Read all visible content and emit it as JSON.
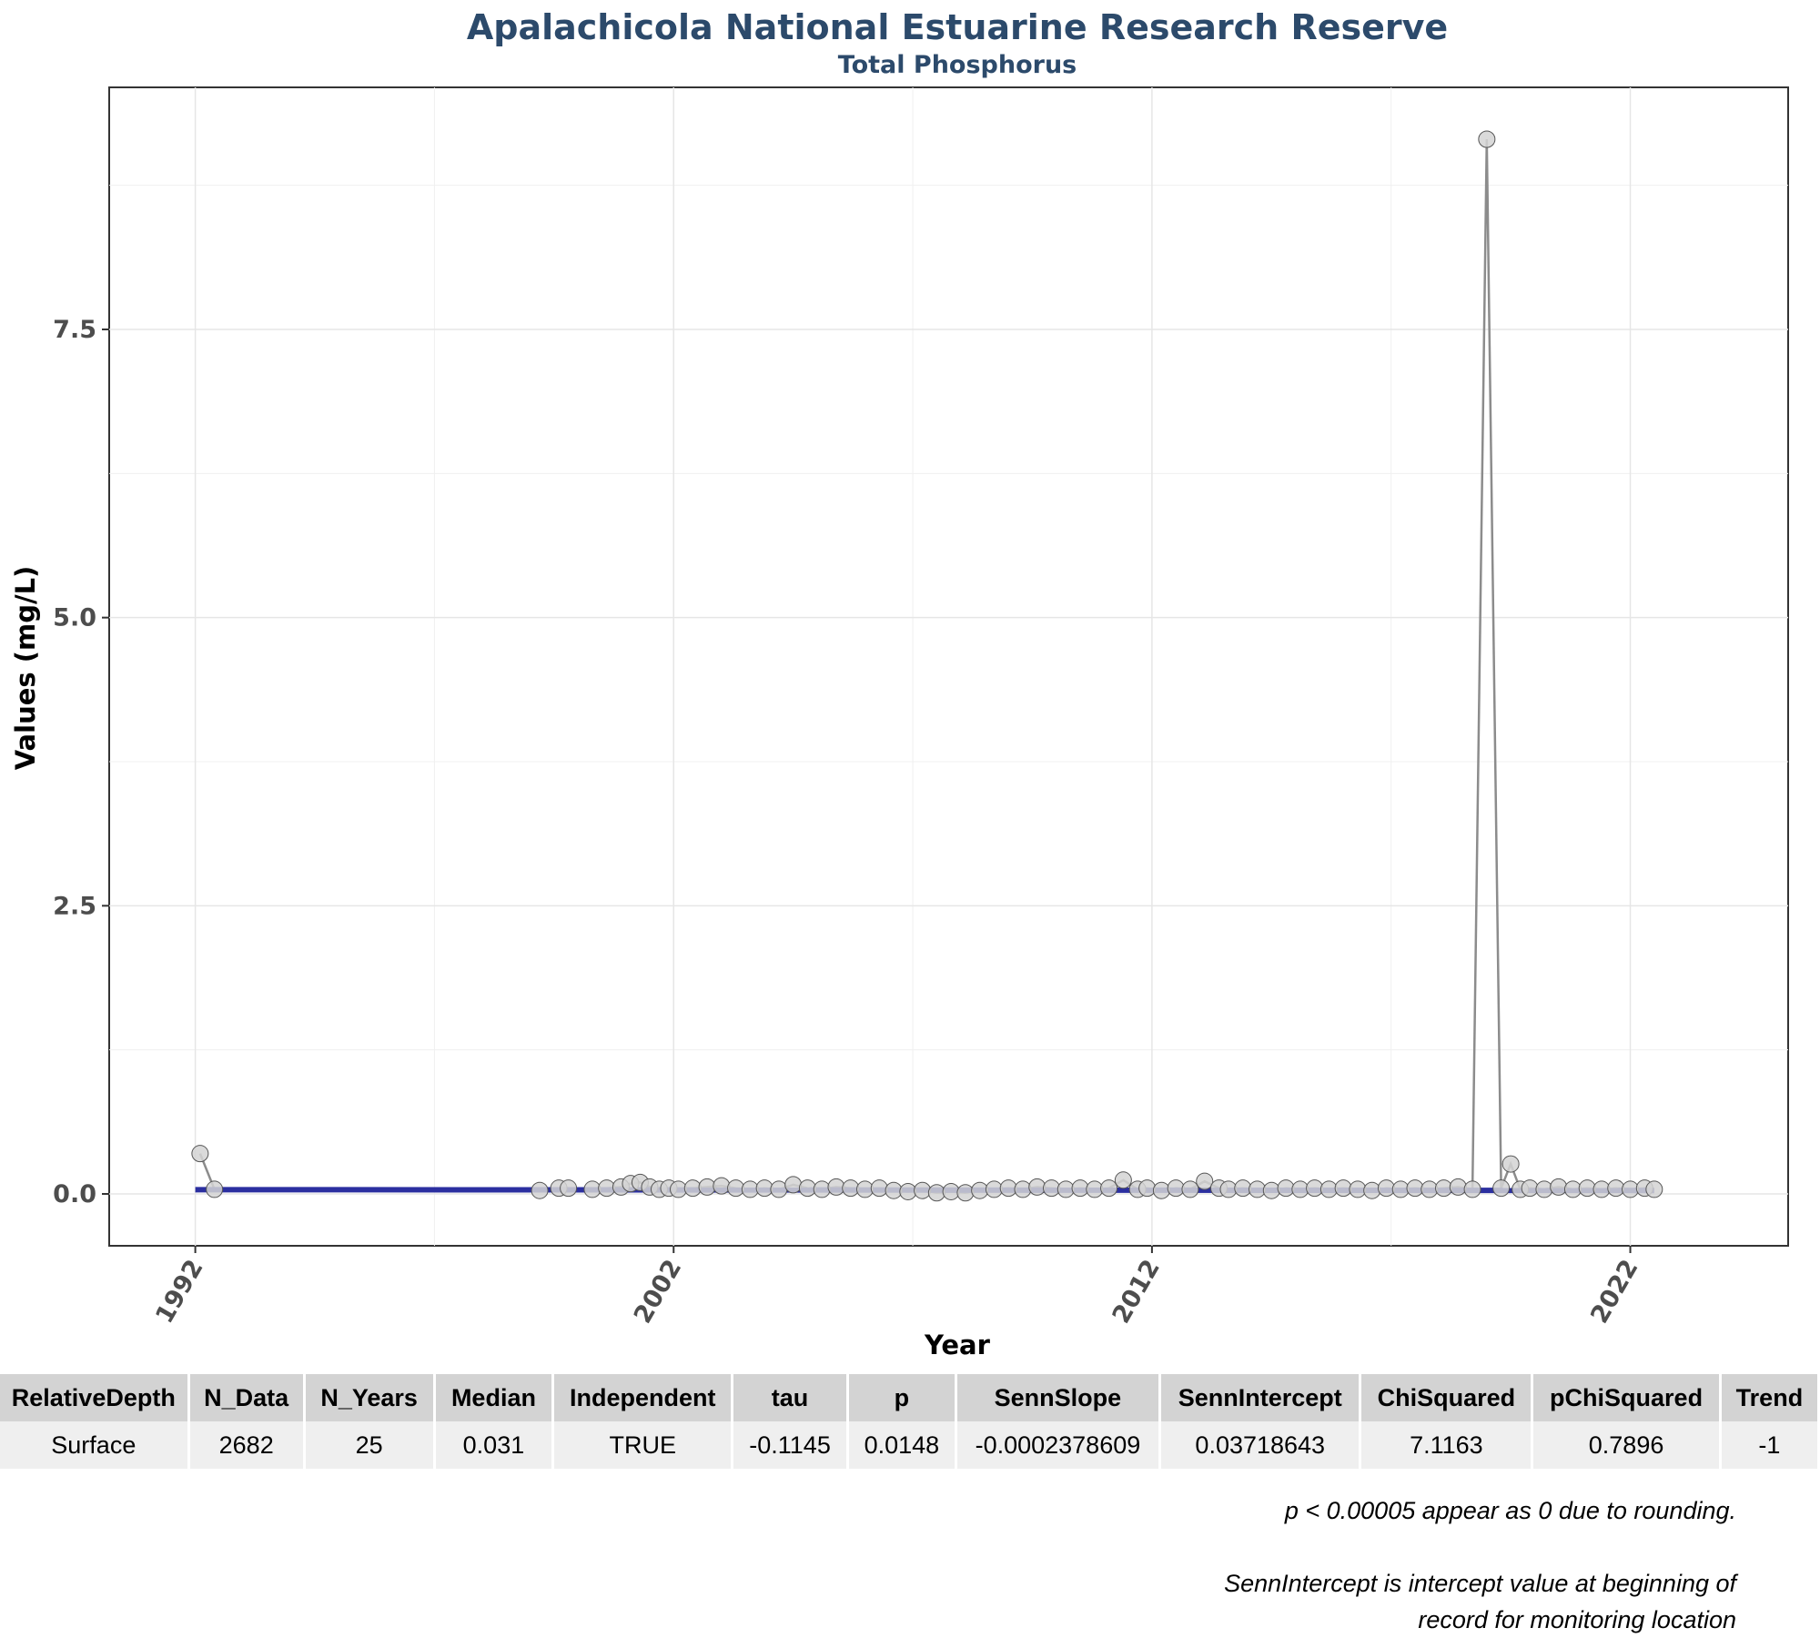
{
  "chart_data": {
    "type": "line",
    "title": "Apalachicola National Estuarine Research Reserve",
    "subtitle": "Total Phosphorus",
    "xlabel": "Year",
    "ylabel": "Values (mg/L)",
    "xlim": [
      1990.2,
      2025.3
    ],
    "ylim": [
      -0.45,
      9.6
    ],
    "x_ticks": [
      1992,
      2002,
      2012,
      2022
    ],
    "y_ticks": [
      0.0,
      2.5,
      5.0,
      7.5
    ],
    "y_tick_labels": [
      "0.0",
      "2.5",
      "5.0",
      "7.5"
    ],
    "grid": true,
    "series": [
      {
        "name": "Observations",
        "x": [
          1992.1,
          1992.4,
          1999.2,
          1999.6,
          1999.8,
          2000.3,
          2000.6,
          2000.9,
          2001.1,
          2001.3,
          2001.5,
          2001.7,
          2001.9,
          2002.1,
          2002.4,
          2002.7,
          2003.0,
          2003.3,
          2003.6,
          2003.9,
          2004.2,
          2004.5,
          2004.8,
          2005.1,
          2005.4,
          2005.7,
          2006.0,
          2006.3,
          2006.6,
          2006.9,
          2007.2,
          2007.5,
          2007.8,
          2008.1,
          2008.4,
          2008.7,
          2009.0,
          2009.3,
          2009.6,
          2009.9,
          2010.2,
          2010.5,
          2010.8,
          2011.1,
          2011.4,
          2011.7,
          2011.9,
          2012.2,
          2012.5,
          2012.8,
          2013.1,
          2013.4,
          2013.6,
          2013.9,
          2014.2,
          2014.5,
          2014.8,
          2015.1,
          2015.4,
          2015.7,
          2016.0,
          2016.3,
          2016.6,
          2016.9,
          2017.2,
          2017.5,
          2017.8,
          2018.1,
          2018.4,
          2018.7,
          2019.0,
          2019.3,
          2019.5,
          2019.7,
          2019.9,
          2020.2,
          2020.5,
          2020.8,
          2021.1,
          2021.4,
          2021.7,
          2022.0,
          2022.3,
          2022.5
        ],
        "y": [
          0.35,
          0.04,
          0.03,
          0.05,
          0.05,
          0.04,
          0.05,
          0.06,
          0.09,
          0.1,
          0.06,
          0.04,
          0.05,
          0.04,
          0.05,
          0.06,
          0.07,
          0.05,
          0.04,
          0.05,
          0.04,
          0.08,
          0.05,
          0.04,
          0.06,
          0.05,
          0.04,
          0.05,
          0.03,
          0.02,
          0.03,
          0.01,
          0.02,
          0.01,
          0.03,
          0.04,
          0.05,
          0.04,
          0.06,
          0.05,
          0.04,
          0.05,
          0.04,
          0.05,
          0.12,
          0.04,
          0.05,
          0.03,
          0.05,
          0.04,
          0.11,
          0.05,
          0.04,
          0.05,
          0.04,
          0.03,
          0.05,
          0.04,
          0.05,
          0.04,
          0.05,
          0.04,
          0.03,
          0.05,
          0.04,
          0.05,
          0.04,
          0.05,
          0.06,
          0.04,
          9.15,
          0.05,
          0.26,
          0.04,
          0.05,
          0.04,
          0.06,
          0.04,
          0.05,
          0.04,
          0.05,
          0.04,
          0.05,
          0.04
        ]
      },
      {
        "name": "Trend",
        "x": [
          1992.0,
          2022.5
        ],
        "y": [
          0.037,
          0.03
        ]
      }
    ],
    "colors": {
      "points": "#d3d3d3",
      "point_edge": "#555555",
      "line": "#8c8c8c",
      "trend": "#2b2fa0",
      "title": "#2c4a6b"
    }
  },
  "table": {
    "headers": [
      "RelativeDepth",
      "N_Data",
      "N_Years",
      "Median",
      "Independent",
      "tau",
      "p",
      "SennSlope",
      "SennIntercept",
      "ChiSquared",
      "pChiSquared",
      "Trend"
    ],
    "row": [
      "Surface",
      "2682",
      "25",
      "0.031",
      "TRUE",
      "-0.1145",
      "0.0148",
      "-0.0002378609",
      "0.03718643",
      "7.1163",
      "0.7896",
      "-1"
    ]
  },
  "notes": {
    "rounding": "p < 0.00005 appear as 0 due to rounding.",
    "intercept_line1": "SennIntercept is intercept value at beginning of",
    "intercept_line2": "record for monitoring location"
  }
}
